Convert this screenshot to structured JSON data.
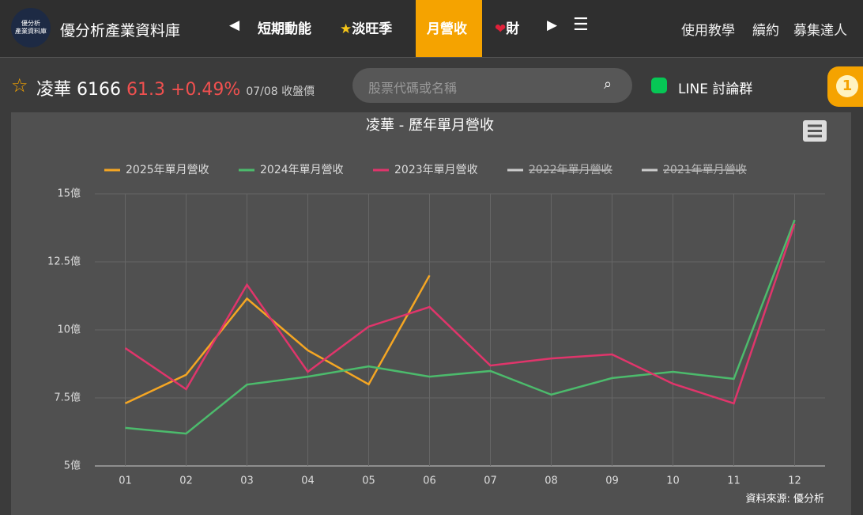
{
  "header": {
    "logo": [
      "優分析",
      "產業資料庫"
    ],
    "site_title": "優分析產業資料庫",
    "nav": [
      "短期動能",
      "淡旺季",
      "月營收",
      "財"
    ],
    "links": [
      "使用教學",
      "續約",
      "募集達人"
    ]
  },
  "stock": {
    "name": "凌華",
    "code": "6166",
    "price": "61.3",
    "change": "+0.49%",
    "date": "07/08 收盤價"
  },
  "search_placeholder": "股票代碼或名稱",
  "line_group": "LINE 討論群",
  "badge": "1",
  "chart_data": {
    "type": "line",
    "title": "凌華 - 歷年單月營收",
    "source": "資料來源: 優分析",
    "categories": [
      "01",
      "02",
      "03",
      "04",
      "05",
      "06",
      "07",
      "08",
      "09",
      "10",
      "11",
      "12"
    ],
    "series": [
      {
        "name": "2025年單月營收",
        "color": "#f5a623",
        "visible": true,
        "values": [
          7.3,
          8.35,
          11.15,
          9.25,
          8.0,
          12.0,
          null,
          null,
          null,
          null,
          null,
          null
        ]
      },
      {
        "name": "2024年單月營收",
        "color": "#4cbb6c",
        "visible": true,
        "values": [
          6.4,
          6.19,
          7.99,
          8.28,
          8.66,
          8.28,
          8.49,
          7.62,
          8.23,
          8.46,
          8.2,
          14.04
        ]
      },
      {
        "name": "2023年單月營收",
        "color": "#e0356b",
        "visible": true,
        "values": [
          9.33,
          7.82,
          11.66,
          8.46,
          10.12,
          10.84,
          8.69,
          8.95,
          9.1,
          8.02,
          7.3,
          13.9
        ]
      },
      {
        "name": "2022年單月營收",
        "color": "#cccccc",
        "visible": false,
        "values": [
          null,
          null,
          null,
          null,
          null,
          null,
          null,
          null,
          null,
          null,
          null,
          null
        ]
      },
      {
        "name": "2021年單月營收",
        "color": "#cccccc",
        "visible": false,
        "values": [
          null,
          null,
          null,
          null,
          null,
          null,
          null,
          null,
          null,
          null,
          null,
          null
        ]
      }
    ],
    "ylim": [
      5,
      15
    ],
    "yticks": [
      {
        "value": 5,
        "label": "5億"
      },
      {
        "value": 7.5,
        "label": "7.5億"
      },
      {
        "value": 10,
        "label": "10億"
      },
      {
        "value": 12.5,
        "label": "12.5億"
      },
      {
        "value": 15,
        "label": "15億"
      }
    ],
    "grid": true
  }
}
